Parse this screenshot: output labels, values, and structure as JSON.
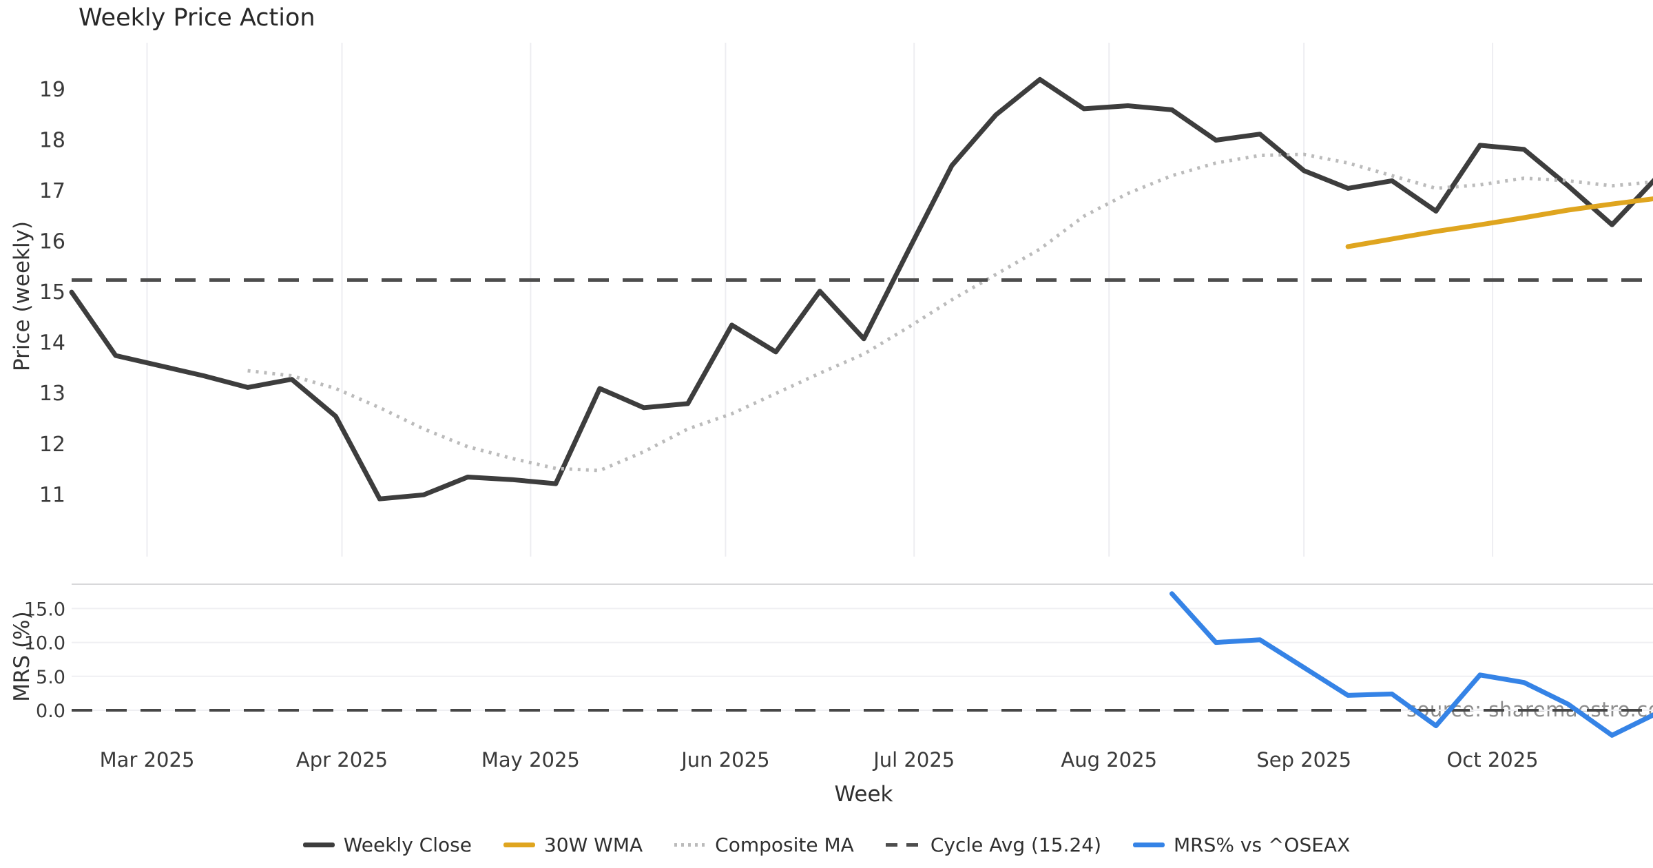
{
  "title": "Weekly Price Action",
  "watermark": "source: sharemaestro.com",
  "axes": {
    "price_label": "Price (weekly)",
    "mrs_label": "MRS (%)",
    "x_label": "Week"
  },
  "chart_data": {
    "type": "line",
    "x": [
      "2025-02-17",
      "2025-02-24",
      "2025-03-03",
      "2025-03-10",
      "2025-03-17",
      "2025-03-24",
      "2025-03-31",
      "2025-04-07",
      "2025-04-14",
      "2025-04-21",
      "2025-04-28",
      "2025-05-05",
      "2025-05-12",
      "2025-05-19",
      "2025-05-26",
      "2025-06-02",
      "2025-06-09",
      "2025-06-16",
      "2025-06-23",
      "2025-06-30",
      "2025-07-07",
      "2025-07-14",
      "2025-07-21",
      "2025-07-28",
      "2025-08-04",
      "2025-08-11",
      "2025-08-18",
      "2025-08-25",
      "2025-09-01",
      "2025-09-08",
      "2025-09-15",
      "2025-09-22",
      "2025-09-29",
      "2025-10-06",
      "2025-10-13",
      "2025-10-20",
      "2025-10-27"
    ],
    "x_ticks": [
      {
        "label": "Mar 2025",
        "date": "2025-03-01"
      },
      {
        "label": "Apr 2025",
        "date": "2025-04-01"
      },
      {
        "label": "May 2025",
        "date": "2025-05-01"
      },
      {
        "label": "Jun 2025",
        "date": "2025-06-01"
      },
      {
        "label": "Jul 2025",
        "date": "2025-07-01"
      },
      {
        "label": "Aug 2025",
        "date": "2025-08-01"
      },
      {
        "label": "Sep 2025",
        "date": "2025-09-01"
      },
      {
        "label": "Oct 2025",
        "date": "2025-10-01"
      }
    ],
    "grid": {
      "top_panel": "vertical-month-gridlines",
      "bottom_panel": "horizontal-gridlines"
    },
    "legend_position": "bottom-center",
    "panels": [
      {
        "name": "price",
        "ylabel": "Price (weekly)",
        "ylim": [
          9.78,
          20.02
        ],
        "yticks": [
          19,
          18,
          17,
          16,
          15,
          14,
          13,
          12,
          11
        ],
        "ytick_labels": [
          "19",
          "18",
          "17",
          "16",
          "15",
          "14",
          "13",
          "12",
          "11"
        ],
        "series": [
          {
            "name": "Weekly Close",
            "color": "#3d3d3d",
            "style": "solid",
            "width": 7,
            "start": 0,
            "values": [
              15.0,
              13.75,
              13.55,
              13.35,
              13.12,
              13.28,
              12.55,
              10.92,
              11.0,
              11.35,
              11.3,
              11.22,
              13.1,
              12.72,
              12.8,
              14.35,
              13.82,
              15.02,
              14.08,
              15.8,
              17.5,
              18.5,
              19.2,
              18.62,
              18.68,
              18.6,
              18.0,
              18.12,
              17.4,
              17.05,
              17.2,
              16.6,
              17.9,
              17.82,
              17.1,
              16.33,
              17.25
            ]
          },
          {
            "name": "30W WMA",
            "color": "#dfa51f",
            "style": "solid",
            "width": 7,
            "start": 29,
            "values": [
              15.9,
              16.05,
              16.2,
              16.33,
              16.47,
              16.62,
              16.74,
              16.85
            ]
          },
          {
            "name": "Composite MA",
            "color": "#bbbbbb",
            "style": "dotted",
            "width": 5,
            "start": 4,
            "values": [
              13.45,
              13.35,
              13.1,
              12.72,
              12.3,
              11.95,
              11.72,
              11.52,
              11.48,
              11.85,
              12.3,
              12.6,
              13.0,
              13.4,
              13.78,
              14.3,
              14.85,
              15.35,
              15.85,
              16.5,
              16.95,
              17.3,
              17.55,
              17.7,
              17.72,
              17.55,
              17.3,
              17.05,
              17.12,
              17.25,
              17.2,
              17.1,
              17.18
            ]
          },
          {
            "name": "Cycle Avg (15.24)",
            "color": "#4d4d4d",
            "style": "dashed",
            "width": 5,
            "const_value": 15.24
          }
        ]
      },
      {
        "name": "mrs",
        "ylabel": "MRS (%)",
        "ylim": [
          -6.2,
          18.6
        ],
        "yticks": [
          15,
          10,
          5,
          0
        ],
        "ytick_labels": [
          "15.0",
          "10.0",
          "5.0",
          "0.0"
        ],
        "series": [
          {
            "name": "Zero line",
            "color": "#474747",
            "style": "dashed",
            "width": 4,
            "const_value": 0
          },
          {
            "name": "MRS% vs ^OSEAX",
            "color": "#3583e6",
            "style": "solid",
            "width": 7,
            "start": 25,
            "values": [
              17.2,
              10.0,
              10.4,
              6.3,
              2.2,
              2.4,
              -2.3,
              5.2,
              4.1,
              0.9,
              -3.7,
              -0.5
            ]
          }
        ]
      }
    ],
    "legend": [
      {
        "label": "Weekly Close",
        "color": "#3d3d3d",
        "style": "solid"
      },
      {
        "label": "30W WMA",
        "color": "#dfa51f",
        "style": "solid"
      },
      {
        "label": "Composite MA",
        "color": "#bbbbbb",
        "style": "dotted"
      },
      {
        "label": "Cycle Avg (15.24)",
        "color": "#4d4d4d",
        "style": "dashed"
      },
      {
        "label": "MRS% vs ^OSEAX",
        "color": "#3583e6",
        "style": "solid"
      }
    ],
    "colors": {
      "grid": "#ededf1",
      "panel_divider": "#d8d8da",
      "tick_text": "#3a3a3a",
      "title_text": "#282828",
      "watermark_text": "#8e8e8e"
    }
  }
}
